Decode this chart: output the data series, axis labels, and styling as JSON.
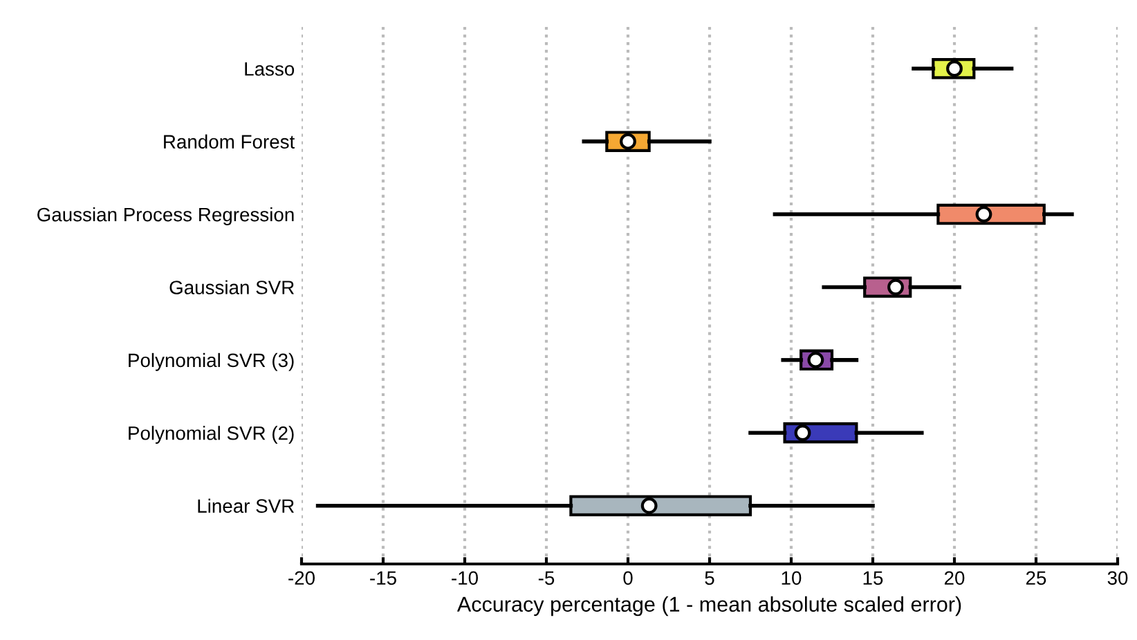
{
  "chart_data": {
    "type": "box",
    "orientation": "horizontal",
    "xlabel": "Accuracy percentage (1 - mean absolute scaled error)",
    "categories": [
      "Lasso",
      "Random Forest",
      "Gaussian Process Regression",
      "Gaussian SVR",
      "Polynomial SVR (3)",
      "Polynomial SVR (2)",
      "Linear SVR"
    ],
    "boxes": [
      {
        "low": 17.5,
        "q1": 18.7,
        "median": 20,
        "q3": 21.2,
        "high": 23.5
      },
      {
        "low": -2.7,
        "q1": -1.3,
        "median": 0,
        "q3": 1.3,
        "high": 5
      },
      {
        "low": 9,
        "q1": 19,
        "median": 21.8,
        "q3": 25.5,
        "high": 27.2
      },
      {
        "low": 12,
        "q1": 14.5,
        "median": 16.4,
        "q3": 17.3,
        "high": 20.3
      },
      {
        "low": 9.5,
        "q1": 10.6,
        "median": 11.5,
        "q3": 12.5,
        "high": 14
      },
      {
        "low": 7.5,
        "q1": 9.6,
        "median": 10.7,
        "q3": 14,
        "high": 18
      },
      {
        "low": -19,
        "q1": -3.5,
        "median": 1.3,
        "q3": 7.5,
        "high": 15
      }
    ],
    "colors": [
      "#e3f24a",
      "#f5a833",
      "#f08a6a",
      "#b8608e",
      "#8a4aa8",
      "#3a3ab8",
      "#a8b6be"
    ],
    "xlim": [
      -20,
      30
    ],
    "xticks": [
      -20,
      -15,
      -10,
      -5,
      0,
      5,
      10,
      15,
      20,
      25,
      30
    ],
    "grid": "x"
  }
}
